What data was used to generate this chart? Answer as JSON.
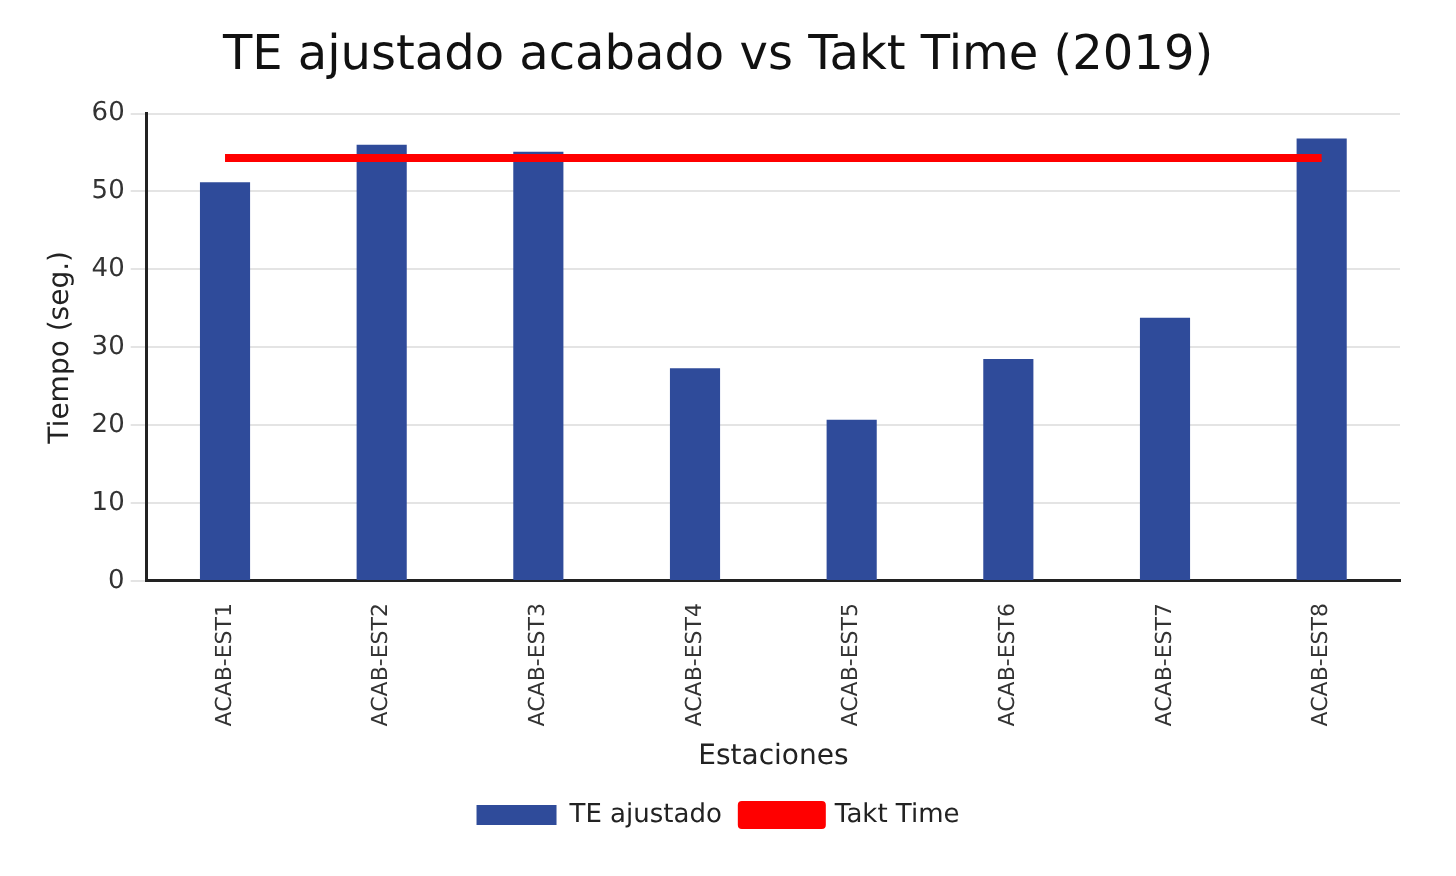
{
  "chart_data": {
    "type": "bar",
    "title": "TE ajustado acabado vs Takt Time (2019)",
    "xlabel": "Estaciones",
    "ylabel": "Tiempo (seg.)",
    "categories": [
      "ACAB-EST1",
      "ACAB-EST2",
      "ACAB-EST3",
      "ACAB-EST4",
      "ACAB-EST5",
      "ACAB-EST6",
      "ACAB-EST7",
      "ACAB-EST8"
    ],
    "series": [
      {
        "name": "TE ajustado",
        "color": "#2f4b9a",
        "values": [
          51.2,
          56,
          55.1,
          27.3,
          20.7,
          28.5,
          33.8,
          56.8
        ]
      },
      {
        "name": "Takt Time",
        "type": "line",
        "color": "#ff0000",
        "values": [
          54.3,
          54.3,
          54.3,
          54.3,
          54.3,
          54.3,
          54.3,
          54.3
        ]
      }
    ],
    "ylim": [
      0,
      60
    ],
    "yticks": [
      0,
      10,
      20,
      30,
      40,
      50,
      60
    ],
    "grid": "y",
    "legend": "bottom",
    "marker": "none",
    "line_style": "solid"
  }
}
